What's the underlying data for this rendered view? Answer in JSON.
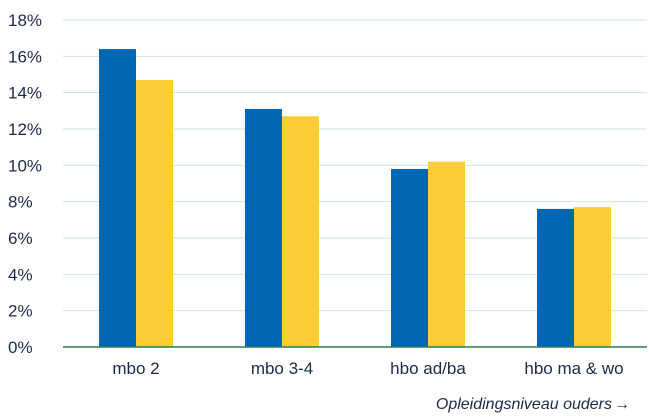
{
  "chart_data": {
    "type": "bar",
    "categories": [
      "mbo 2",
      "mbo 3-4",
      "hbo ad/ba",
      "hbo ma & wo"
    ],
    "series": [
      {
        "color": "#0066b3",
        "values": [
          16.4,
          13.1,
          9.8,
          7.6
        ]
      },
      {
        "color": "#fdcc36",
        "values": [
          14.7,
          12.7,
          10.2,
          7.7
        ]
      }
    ],
    "y_ticks": [
      "0%",
      "2%",
      "4%",
      "6%",
      "8%",
      "10%",
      "12%",
      "14%",
      "16%",
      "18%"
    ],
    "ylim": [
      0,
      18
    ],
    "ytick_step": 2,
    "xlabel": "Opleidingsniveau ouders",
    "xlabel_arrow": "→",
    "grid": true,
    "legend": false,
    "colors": {
      "grid": "#cfe6d5",
      "axis": "#2e7d4f",
      "text": "#1a2a4a"
    }
  }
}
